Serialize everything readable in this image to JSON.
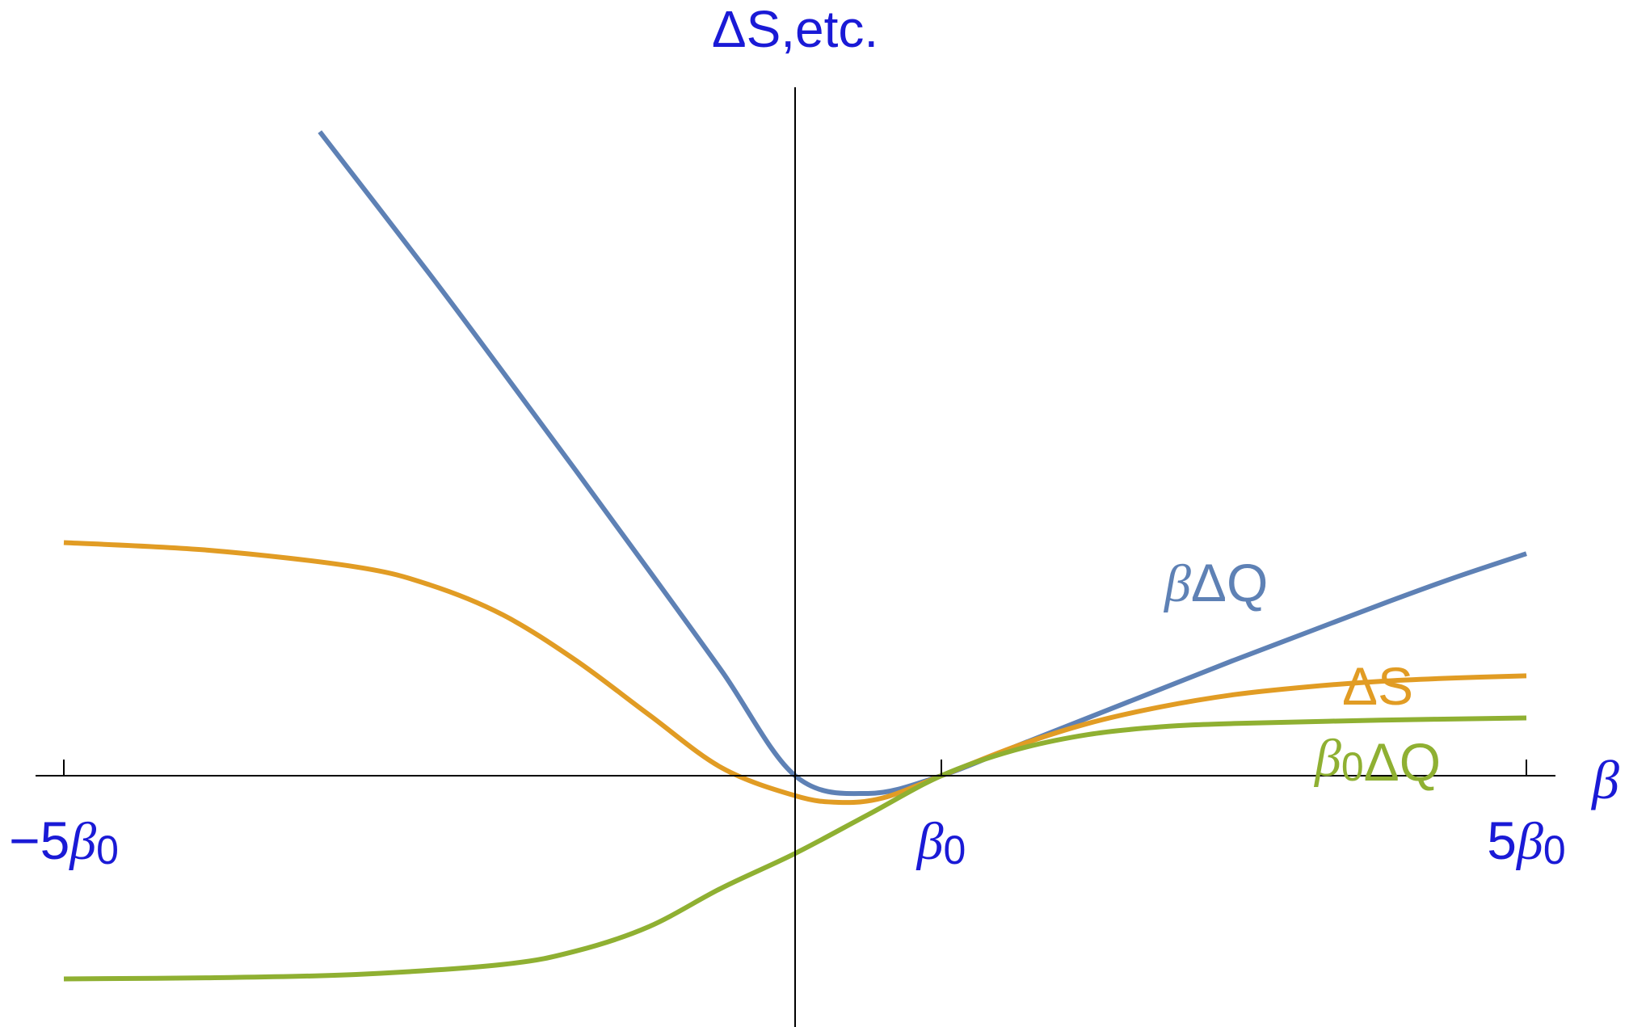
{
  "chart_data": {
    "type": "line",
    "xlabel": "β",
    "ylabel": "ΔS,etc.",
    "xlim": [
      -5,
      5
    ],
    "x_unit": "β0",
    "ticks": [
      {
        "value": -5,
        "sign": "−",
        "coef": "5",
        "sym": "β",
        "sub": "0"
      },
      {
        "value": 1,
        "sign": "",
        "coef": "",
        "sym": "β",
        "sub": "0"
      },
      {
        "value": 5,
        "sign": "",
        "coef": "5",
        "sym": "β",
        "sub": "0"
      }
    ],
    "grid": false,
    "legend": "inline labels at right",
    "series": [
      {
        "name": "βΔQ",
        "color": "#5e81b5",
        "x": [
          -3.25,
          -2.5,
          -2.0,
          -1.5,
          -1.0,
          -0.5,
          0.0,
          0.5,
          1.0,
          1.5,
          2.0,
          2.5,
          3.0,
          3.5,
          4.0,
          4.5,
          5.0
        ],
        "y": [
          5.8,
          4.52,
          3.64,
          2.75,
          1.85,
          0.94,
          0.0,
          -0.16,
          0.0,
          0.26,
          0.52,
          0.78,
          1.04,
          1.29,
          1.54,
          1.78,
          2.0
        ]
      },
      {
        "name": "ΔS",
        "color": "#e19c24",
        "x": [
          -5.0,
          -4.0,
          -3.0,
          -2.5,
          -2.0,
          -1.5,
          -1.0,
          -0.5,
          0.0,
          0.3,
          0.6,
          1.0,
          1.5,
          2.0,
          2.5,
          3.0,
          3.5,
          4.0,
          4.5,
          5.0
        ],
        "y": [
          2.1,
          2.03,
          1.88,
          1.72,
          1.45,
          1.04,
          0.55,
          0.07,
          -0.18,
          -0.24,
          -0.2,
          0.0,
          0.26,
          0.47,
          0.62,
          0.73,
          0.8,
          0.85,
          0.88,
          0.9
        ],
        "label_x": 4.2,
        "label_y": 0.78
      },
      {
        "name": "β0ΔQ",
        "color": "#8fb032",
        "x": [
          -5.0,
          -4.0,
          -3.0,
          -2.0,
          -1.5,
          -1.0,
          -0.5,
          0.0,
          0.5,
          1.0,
          1.5,
          2.0,
          2.5,
          3.0,
          4.0,
          5.0
        ],
        "y": [
          -1.83,
          -1.82,
          -1.79,
          -1.7,
          -1.58,
          -1.36,
          -1.01,
          -0.7,
          -0.35,
          0.0,
          0.23,
          0.37,
          0.44,
          0.47,
          0.5,
          0.52
        ],
        "label_x": 4.2,
        "label_y": 0.04
      }
    ]
  }
}
